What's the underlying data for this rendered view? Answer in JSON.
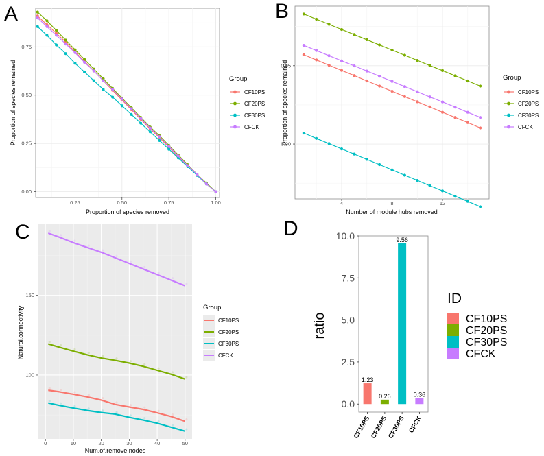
{
  "panel_letters": {
    "A": "A",
    "B": "B",
    "C": "C",
    "D": "D"
  },
  "colors": {
    "CF10PS": "#F8766D",
    "CF20PS": "#7CAE00",
    "CF30PS": "#00BFC4",
    "CFCK": "#C77CFF"
  },
  "chart_data": [
    {
      "id": "A",
      "type": "line",
      "title": "",
      "xlabel": "Proportion of species removed",
      "ylabel": "Proportion of species remained",
      "xlim": [
        0.04,
        1.02
      ],
      "ylim": [
        -0.03,
        0.95
      ],
      "xticks": [
        0.25,
        0.5,
        0.75,
        1.0
      ],
      "xtick_labels": [
        "0.25",
        "0.50",
        "0.75",
        "1.00"
      ],
      "yticks": [
        0.0,
        0.25,
        0.5,
        0.75
      ],
      "ytick_labels": [
        "0.00",
        "0.25",
        "0.50",
        "0.75"
      ],
      "legend_title": "Group",
      "legend_position": "right",
      "x": [
        0.05,
        0.1,
        0.15,
        0.2,
        0.25,
        0.3,
        0.35,
        0.4,
        0.45,
        0.5,
        0.55,
        0.6,
        0.65,
        0.7,
        0.75,
        0.8,
        0.85,
        0.9,
        0.95,
        1.0
      ],
      "series": [
        {
          "name": "CF10PS",
          "values": [
            0.91,
            0.865,
            0.82,
            0.775,
            0.725,
            0.675,
            0.625,
            0.575,
            0.525,
            0.475,
            0.425,
            0.375,
            0.325,
            0.28,
            0.23,
            0.18,
            0.135,
            0.085,
            0.04,
            0.0
          ]
        },
        {
          "name": "CF20PS",
          "values": [
            0.93,
            0.885,
            0.835,
            0.785,
            0.735,
            0.685,
            0.635,
            0.585,
            0.535,
            0.485,
            0.435,
            0.385,
            0.335,
            0.29,
            0.24,
            0.19,
            0.14,
            0.09,
            0.045,
            0.0
          ]
        },
        {
          "name": "CF30PS",
          "values": [
            0.855,
            0.81,
            0.76,
            0.715,
            0.665,
            0.62,
            0.575,
            0.53,
            0.49,
            0.445,
            0.4,
            0.355,
            0.31,
            0.265,
            0.22,
            0.175,
            0.13,
            0.085,
            0.04,
            0.0
          ]
        },
        {
          "name": "CFCK",
          "values": [
            0.9,
            0.855,
            0.81,
            0.765,
            0.72,
            0.67,
            0.625,
            0.575,
            0.53,
            0.48,
            0.43,
            0.38,
            0.33,
            0.285,
            0.235,
            0.185,
            0.135,
            0.09,
            0.04,
            0.0
          ]
        }
      ]
    },
    {
      "id": "B",
      "type": "line",
      "title": "",
      "xlabel": "Number of module hubs removed",
      "ylabel": "Proportion of species remained",
      "xlim": [
        0.3,
        15.7
      ],
      "ylim": [
        0.865,
        0.988
      ],
      "xticks": [
        4,
        8,
        12
      ],
      "xtick_labels": [
        "4",
        "8",
        "12"
      ],
      "yticks": [
        0.9,
        0.95
      ],
      "ytick_labels": [
        "0.90",
        "0.95"
      ],
      "legend_title": "Group",
      "legend_position": "right",
      "x": [
        1,
        2,
        3,
        4,
        5,
        6,
        7,
        8,
        9,
        10,
        11,
        12,
        13,
        14,
        15
      ],
      "series": [
        {
          "name": "CF10PS",
          "values": [
            0.957,
            0.9537,
            0.9503,
            0.947,
            0.9437,
            0.9403,
            0.937,
            0.9337,
            0.9303,
            0.927,
            0.9237,
            0.9203,
            0.917,
            0.9137,
            0.9103
          ]
        },
        {
          "name": "CF20PS",
          "values": [
            0.983,
            0.9797,
            0.9764,
            0.9731,
            0.9699,
            0.9666,
            0.9633,
            0.96,
            0.9567,
            0.9534,
            0.9501,
            0.9469,
            0.9436,
            0.9403,
            0.937
          ]
        },
        {
          "name": "CF30PS",
          "values": [
            0.907,
            0.9036,
            0.9003,
            0.8969,
            0.8936,
            0.8902,
            0.8869,
            0.8835,
            0.8801,
            0.8768,
            0.8734,
            0.8701,
            0.8667,
            0.8634,
            0.86
          ]
        },
        {
          "name": "CFCK",
          "values": [
            0.963,
            0.9597,
            0.9564,
            0.9531,
            0.9499,
            0.9466,
            0.9433,
            0.94,
            0.9367,
            0.9334,
            0.9301,
            0.9269,
            0.9236,
            0.9203,
            0.917
          ]
        }
      ]
    },
    {
      "id": "C",
      "type": "line",
      "title": "",
      "xlabel": "Num.of.remove.nodes",
      "ylabel": "Natural.connectivity",
      "xlim": [
        -2.5,
        52.5
      ],
      "ylim": [
        60,
        195
      ],
      "xticks": [
        0,
        10,
        20,
        30,
        40,
        50
      ],
      "xtick_labels": [
        "0",
        "10",
        "20",
        "30",
        "40",
        "50"
      ],
      "yticks": [
        100,
        150
      ],
      "ytick_labels": [
        "100",
        "150"
      ],
      "legend_title": "Group",
      "legend_position": "right",
      "x": [
        1,
        5,
        10,
        15,
        20,
        25,
        30,
        35,
        40,
        45,
        50
      ],
      "series": [
        {
          "name": "CF10PS",
          "values": [
            90.5,
            89.5,
            88,
            86.3,
            84.3,
            81.6,
            80,
            78.5,
            76.3,
            74,
            71
          ]
        },
        {
          "name": "CF20PS",
          "values": [
            119.5,
            117.5,
            115,
            112.7,
            110.7,
            109.2,
            107.5,
            105.5,
            103,
            100.5,
            97.5
          ]
        },
        {
          "name": "CF30PS",
          "values": [
            82.5,
            81,
            79.3,
            77.8,
            76.5,
            75.5,
            73.5,
            71.8,
            69.8,
            67.3,
            64.8
          ]
        },
        {
          "name": "CFCK",
          "values": [
            189,
            186.5,
            183,
            180,
            177,
            173.5,
            170,
            166.5,
            163,
            159.5,
            156
          ]
        }
      ]
    },
    {
      "id": "D",
      "type": "bar",
      "title": "",
      "xlabel": "",
      "ylabel": "ratio",
      "categories": [
        "CF10PS",
        "CF20PS",
        "CF30PS",
        "CFCK"
      ],
      "values": [
        1.23,
        0.26,
        9.56,
        0.36
      ],
      "data_labels": [
        "1.23",
        "0.26",
        "9.56",
        "0.36"
      ],
      "ylim": [
        -0.48,
        10.0
      ],
      "yticks": [
        0,
        2.5,
        5,
        7.5,
        10
      ],
      "ytick_labels": [
        "0.0",
        "2.5",
        "5.0",
        "7.5",
        "10.0"
      ],
      "legend_title": "ID",
      "legend_position": "right"
    }
  ]
}
